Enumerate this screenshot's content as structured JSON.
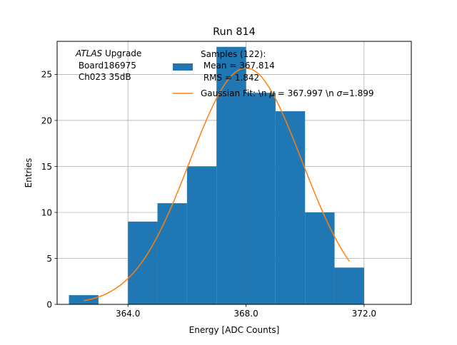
{
  "chart_data": {
    "type": "bar",
    "title": "Run 814",
    "xlabel": "Energy [ADC Counts]",
    "ylabel": "Entries",
    "xlim": [
      361.6,
      373.6
    ],
    "ylim": [
      0,
      28.6
    ],
    "grid": true,
    "x_ticks": [
      364,
      368,
      372
    ],
    "x_tick_labels": [
      "364.0",
      "368.0",
      "372.0"
    ],
    "y_ticks": [
      0,
      5,
      10,
      15,
      20,
      25
    ],
    "y_tick_labels": [
      "0",
      "5",
      "10",
      "15",
      "20",
      "25"
    ],
    "bins": [
      {
        "x0": 362,
        "x1": 363,
        "value": 1
      },
      {
        "x0": 363,
        "x1": 364,
        "value": 0
      },
      {
        "x0": 364,
        "x1": 365,
        "value": 9
      },
      {
        "x0": 365,
        "x1": 366,
        "value": 11
      },
      {
        "x0": 366,
        "x1": 367,
        "value": 15
      },
      {
        "x0": 367,
        "x1": 368,
        "value": 28
      },
      {
        "x0": 368,
        "x1": 369,
        "value": 23
      },
      {
        "x0": 369,
        "x1": 370,
        "value": 21
      },
      {
        "x0": 370,
        "x1": 371,
        "value": 10
      },
      {
        "x0": 371,
        "x1": 372,
        "value": 4
      }
    ],
    "gaussian_fit": {
      "amplitude": 25.7,
      "mean": 367.997,
      "sigma": 1.899,
      "x_range": [
        362.5,
        371.5
      ]
    },
    "colors": {
      "bars": "#1f77b4",
      "fit": "#ff7f0e",
      "grid": "#b0b0b0"
    },
    "annotation": {
      "experiment": "ATLAS",
      "experiment_suffix": " Upgrade",
      "board": " Board186975",
      "channel": " Ch023 35dB"
    },
    "legend": {
      "placement": "top-right",
      "samples_label_lines": [
        "Samples (122):",
        " Mean = 367.814",
        " RMS = 1.842"
      ],
      "fit_label_prefix": "Gaussian Fit: \\n ",
      "mu_symbol": "μ",
      "fit_label_mid": " = 367.997 \\n ",
      "sigma_symbol": "σ",
      "fit_label_suffix": "=1.899"
    }
  }
}
